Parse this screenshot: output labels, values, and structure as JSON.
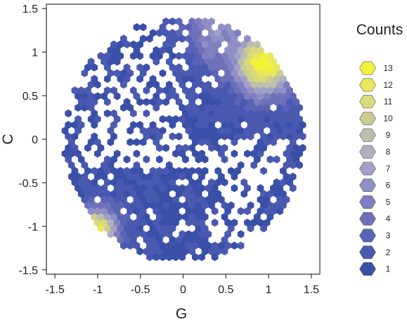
{
  "chart_data": {
    "type": "hexbin",
    "xlabel": "G",
    "ylabel": "C",
    "xlim": [
      -1.6,
      1.6
    ],
    "ylim": [
      -1.55,
      1.55
    ],
    "xticks": [
      -1.5,
      -1,
      -0.5,
      0,
      0.5,
      1,
      1.5
    ],
    "xtick_labels": [
      "-1.5",
      "-1",
      "-0.5",
      "0",
      "0.5",
      "1",
      "1.5"
    ],
    "yticks": [
      -1.5,
      -1,
      -0.5,
      0,
      0.5,
      1,
      1.5
    ],
    "ytick_labels": [
      "-1.5",
      "-1",
      "-0.5",
      "0",
      "0.5",
      "1",
      "1.5"
    ],
    "grid": false,
    "legend": {
      "title": "Counts",
      "placement": "right",
      "levels": [
        13,
        12,
        11,
        10,
        9,
        8,
        7,
        6,
        5,
        4,
        3,
        2,
        1
      ],
      "level_labels": [
        "13",
        "12",
        "11",
        "10",
        "9",
        "8",
        "7",
        "6",
        "5",
        "4",
        "3",
        "2",
        "1"
      ]
    },
    "colors": {
      "1": "#3a4fa8",
      "2": "#4a59b0",
      "3": "#5a63b5",
      "4": "#6e70ba",
      "5": "#7f7fc0",
      "6": "#8f8fc6",
      "7": "#a0a0c8",
      "8": "#b0b0c4",
      "9": "#bdbfaa",
      "10": "#cccc90",
      "11": "#dada78",
      "12": "#e8e85c",
      "13": "#f2f23c"
    },
    "domain_radius": 1.42,
    "hex_radius": 0.044,
    "dense_regions": [
      {
        "label": "upper-right cluster",
        "center": [
          0.95,
          0.85
        ],
        "peak_count": 13
      },
      {
        "label": "lower-left cluster",
        "center": [
          -1.0,
          -1.02
        ],
        "peak_count": 12
      },
      {
        "label": "upper ridge",
        "center": [
          0.35,
          1.25
        ],
        "peak_count": 6
      }
    ]
  }
}
